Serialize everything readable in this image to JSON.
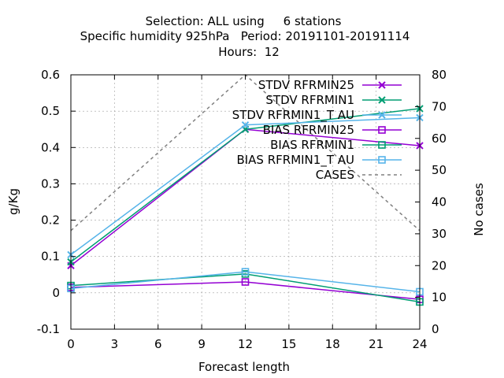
{
  "chart_data": {
    "type": "line",
    "title_lines": [
      "Selection: ALL using     6 stations",
      "Specific humidity 925hPa   Period: 20191101-20191114",
      "Hours:  12"
    ],
    "xlabel": "Forecast length",
    "ylabel": "g/Kg",
    "y2label": "No cases",
    "x": [
      0,
      12,
      24
    ],
    "xlim": [
      0,
      24
    ],
    "ylim": [
      -0.1,
      0.6
    ],
    "y2lim": [
      0,
      80
    ],
    "xticks": [
      "0",
      "3",
      "6",
      "9",
      "12",
      "15",
      "18",
      "21",
      "24"
    ],
    "yticks": [
      "-0.1",
      "0",
      "0.1",
      "0.2",
      "0.3",
      "0.4",
      "0.5",
      "0.6"
    ],
    "y2ticks": [
      "0",
      "10",
      "20",
      "30",
      "40",
      "50",
      "60",
      "70",
      "80"
    ],
    "grid": true,
    "legend_position": "top-right",
    "series": [
      {
        "name": "STDV RFRMIN25",
        "axis": "y",
        "marker": "x",
        "color": "#9400d3",
        "values": [
          0.075,
          0.45,
          0.405
        ]
      },
      {
        "name": "STDV RFRMIN1",
        "axis": "y",
        "marker": "x",
        "color": "#009e73",
        "values": [
          0.085,
          0.45,
          0.507
        ]
      },
      {
        "name": "STDV RFRMIN1_T AU",
        "axis": "y",
        "marker": "x",
        "color": "#56b4e9",
        "values": [
          0.105,
          0.462,
          0.482
        ]
      },
      {
        "name": "BIAS RFRMIN25",
        "axis": "y",
        "marker": "square",
        "color": "#9400d3",
        "values": [
          0.015,
          0.03,
          -0.018
        ]
      },
      {
        "name": "BIAS RFRMIN1",
        "axis": "y",
        "marker": "square",
        "color": "#009e73",
        "values": [
          0.02,
          0.052,
          -0.025
        ]
      },
      {
        "name": "BIAS RFRMIN1_T AU",
        "axis": "y",
        "marker": "square",
        "color": "#56b4e9",
        "values": [
          0.012,
          0.058,
          0.003
        ]
      },
      {
        "name": "CASES",
        "axis": "y2",
        "marker": "none",
        "dashed": true,
        "color": "#808080",
        "values": [
          31,
          80,
          31
        ]
      }
    ]
  }
}
